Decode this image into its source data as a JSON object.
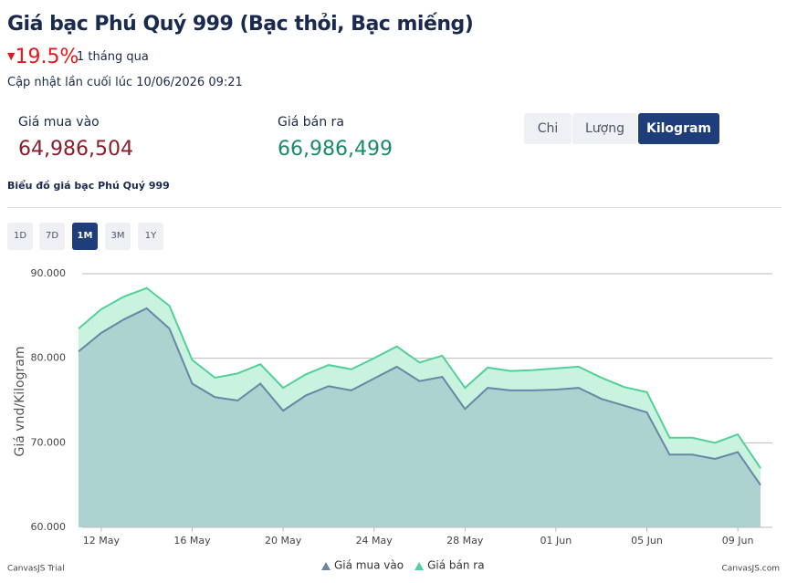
{
  "header": {
    "title": "Giá bạc Phú Quý 999 (Bạc thỏi, Bạc miếng)",
    "change": "19.5%",
    "period": "1 tháng qua",
    "updated": "Cập nhật lần cuối lúc 10/06/2026 09:21"
  },
  "prices": {
    "buy_label": "Giá mua vào",
    "buy": "64,986,504",
    "sell_label": "Giá bán ra",
    "sell": "66,986,499"
  },
  "units": [
    "Chi",
    "Lượng",
    "Kilogram"
  ],
  "section_title": "Biểu đồ giá bạc Phú Quý 999",
  "ranges": [
    "1D",
    "7D",
    "1M",
    "3M",
    "1Y"
  ],
  "chart_data": {
    "type": "range-area",
    "y_label": "Giá vnd/Kilogram",
    "categories": [
      null,
      "12 May",
      null,
      null,
      null,
      "16 May",
      null,
      null,
      null,
      "20 May",
      null,
      null,
      null,
      "24 May",
      null,
      null,
      null,
      "28 May",
      null,
      null,
      null,
      "01 Jun",
      null,
      null,
      null,
      "05 Jun",
      null,
      null,
      null,
      "09 Jun",
      null
    ],
    "series": [
      {
        "name": "Giá mua vào",
        "color": "#6a86a6",
        "fill": "#acd3cf",
        "values": [
          80800,
          83000,
          84600,
          85900,
          83500,
          77000,
          75400,
          75000,
          77000,
          73800,
          75600,
          76700,
          76200,
          77600,
          79000,
          77300,
          77800,
          74000,
          76500,
          76200,
          76200,
          76300,
          76500,
          75200,
          74400,
          73600,
          68600,
          68600,
          68100,
          68900,
          65000
        ]
      },
      {
        "name": "Giá bán ra",
        "color": "#52d09a",
        "fill": "#c9f2df",
        "values": [
          83500,
          85800,
          87300,
          88300,
          86200,
          79800,
          77700,
          78200,
          79300,
          76500,
          78100,
          79200,
          78700,
          80000,
          81400,
          79500,
          80300,
          76500,
          78900,
          78500,
          78600,
          78800,
          79000,
          77700,
          76600,
          76000,
          70600,
          70600,
          70000,
          71000,
          67000
        ]
      }
    ],
    "ylim": [
      60000,
      90000
    ],
    "yticks": [
      {
        "value": 60000,
        "label": "60.000"
      },
      {
        "value": 70000,
        "label": "70.000"
      },
      {
        "value": 80000,
        "label": "80.000"
      },
      {
        "value": 90000,
        "label": "90.000"
      }
    ],
    "grid": true
  },
  "footer": {
    "left": "CanvasJS Trial",
    "right": "CanvasJS.com"
  }
}
